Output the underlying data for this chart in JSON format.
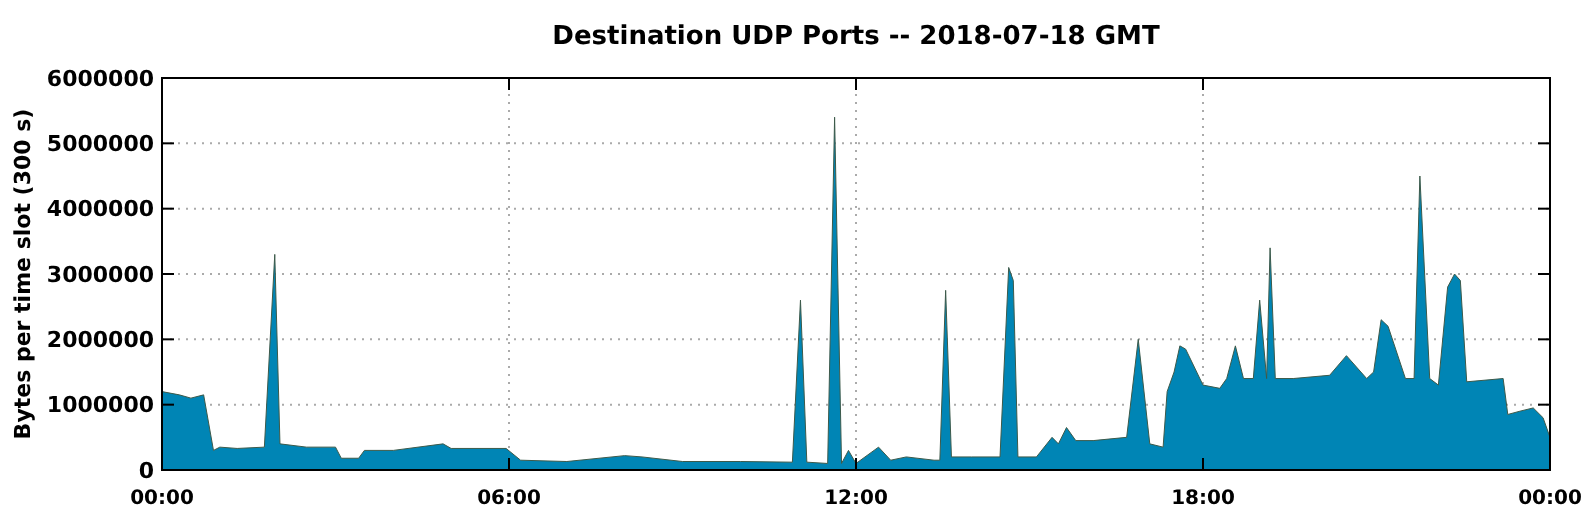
{
  "chart_data": {
    "type": "area",
    "title": "Destination UDP Ports -- 2018-07-18 GMT",
    "ylabel": "Bytes per time slot (300 s)",
    "xlim": [
      0,
      24
    ],
    "xticks": [
      {
        "value": 0,
        "label": "00:00"
      },
      {
        "value": 6,
        "label": "06:00"
      },
      {
        "value": 12,
        "label": "12:00"
      },
      {
        "value": 18,
        "label": "18:00"
      },
      {
        "value": 24,
        "label": "00:00"
      }
    ],
    "ylim": [
      0,
      6000000
    ],
    "yticks": [
      0,
      1000000,
      2000000,
      3000000,
      4000000,
      5000000,
      6000000
    ],
    "grid": true,
    "x": [
      0,
      0.3,
      0.5,
      0.72,
      0.89,
      1.0,
      1.3,
      1.77,
      1.95,
      2.04,
      2.5,
      3.0,
      3.1,
      3.4,
      3.5,
      4.0,
      4.86,
      5.0,
      5.95,
      6.2,
      7.0,
      8.0,
      8.3,
      9.0,
      10.0,
      10.9,
      11.04,
      11.15,
      11.51,
      11.63,
      11.75,
      11.87,
      12.0,
      12.39,
      12.6,
      12.87,
      13.35,
      13.45,
      13.55,
      13.65,
      14.0,
      14.49,
      14.64,
      14.72,
      14.8,
      15.12,
      15.39,
      15.5,
      15.64,
      15.8,
      16.1,
      16.68,
      16.88,
      17.08,
      17.31,
      17.38,
      17.5,
      17.6,
      17.7,
      18.0,
      18.29,
      18.41,
      18.56,
      18.7,
      18.87,
      18.98,
      19.1,
      19.16,
      19.25,
      19.56,
      20.19,
      20.48,
      20.83,
      20.95,
      21.08,
      21.2,
      21.5,
      21.65,
      21.75,
      21.92,
      22.07,
      22.23,
      22.35,
      22.45,
      22.56,
      23.19,
      23.27,
      23.48,
      23.71,
      23.88,
      24
    ],
    "series": [
      {
        "color": "#0085b5",
        "values": [
          1200000,
          1150000,
          1100000,
          1150000,
          300000,
          350000,
          330000,
          350000,
          3300000,
          400000,
          350000,
          350000,
          180000,
          180000,
          300000,
          300000,
          400000,
          330000,
          330000,
          150000,
          130000,
          220000,
          200000,
          130000,
          130000,
          120000,
          2600000,
          120000,
          100000,
          5400000,
          100000,
          300000,
          100000,
          350000,
          150000,
          200000,
          150000,
          150000,
          2750000,
          200000,
          200000,
          200000,
          3100000,
          2900000,
          200000,
          200000,
          500000,
          400000,
          650000,
          450000,
          450000,
          500000,
          2000000,
          400000,
          350000,
          1200000,
          1500000,
          1900000,
          1850000,
          1300000,
          1250000,
          1400000,
          1900000,
          1400000,
          1400000,
          2600000,
          1400000,
          3400000,
          1400000,
          1400000,
          1450000,
          1750000,
          1400000,
          1500000,
          2300000,
          2200000,
          1400000,
          1400000,
          4500000,
          1400000,
          1300000,
          2800000,
          3000000,
          2900000,
          1350000,
          1400000,
          850000,
          900000,
          950000,
          800000,
          500000
        ]
      }
    ]
  }
}
